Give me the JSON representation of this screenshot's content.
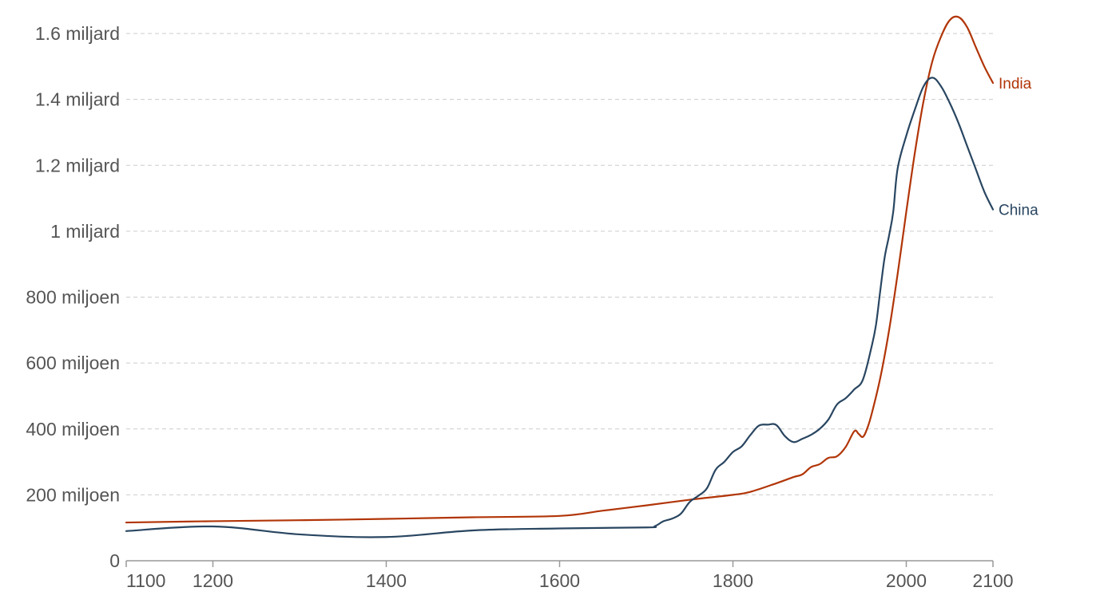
{
  "chart_data": {
    "type": "line",
    "title": "",
    "xlabel": "",
    "ylabel": "",
    "xlim": [
      1100,
      2100
    ],
    "ylim": [
      0,
      1600000000
    ],
    "grid": true,
    "legend": "inline-right",
    "x_ticks": [
      {
        "value": 1100,
        "label": "1100"
      },
      {
        "value": 1200,
        "label": "1200"
      },
      {
        "value": 1400,
        "label": "1400"
      },
      {
        "value": 1600,
        "label": "1600"
      },
      {
        "value": 1800,
        "label": "1800"
      },
      {
        "value": 2000,
        "label": "2000"
      },
      {
        "value": 2100,
        "label": "2100"
      }
    ],
    "y_ticks": [
      {
        "value": 0,
        "label": "0"
      },
      {
        "value": 200000000,
        "label": "200 miljoen"
      },
      {
        "value": 400000000,
        "label": "400 miljoen"
      },
      {
        "value": 600000000,
        "label": "600 miljoen"
      },
      {
        "value": 800000000,
        "label": "800 miljoen"
      },
      {
        "value": 1000000000,
        "label": "1 miljard"
      },
      {
        "value": 1200000000,
        "label": "1.2 miljard"
      },
      {
        "value": 1400000000,
        "label": "1.4 miljard"
      },
      {
        "value": 1600000000,
        "label": "1.6 miljard"
      }
    ],
    "series": [
      {
        "name": "India",
        "color": "#b13507",
        "points": [
          [
            1100,
            116000000
          ],
          [
            1200,
            120000000
          ],
          [
            1300,
            123000000
          ],
          [
            1400,
            127000000
          ],
          [
            1500,
            132000000
          ],
          [
            1600,
            136000000
          ],
          [
            1650,
            152000000
          ],
          [
            1700,
            168000000
          ],
          [
            1750,
            185000000
          ],
          [
            1800,
            200000000
          ],
          [
            1820,
            209000000
          ],
          [
            1850,
            235000000
          ],
          [
            1870,
            254000000
          ],
          [
            1880,
            262000000
          ],
          [
            1890,
            284000000
          ],
          [
            1900,
            293000000
          ],
          [
            1910,
            312000000
          ],
          [
            1920,
            317000000
          ],
          [
            1930,
            345000000
          ],
          [
            1940,
            393000000
          ],
          [
            1945,
            385000000
          ],
          [
            1950,
            376000000
          ],
          [
            1955,
            402000000
          ],
          [
            1960,
            445000000
          ],
          [
            1970,
            555000000
          ],
          [
            1980,
            697000000
          ],
          [
            1990,
            870000000
          ],
          [
            2000,
            1059000000
          ],
          [
            2010,
            1240000000
          ],
          [
            2020,
            1396000000
          ],
          [
            2030,
            1515000000
          ],
          [
            2040,
            1590000000
          ],
          [
            2050,
            1640000000
          ],
          [
            2060,
            1650000000
          ],
          [
            2070,
            1620000000
          ],
          [
            2080,
            1560000000
          ],
          [
            2090,
            1500000000
          ],
          [
            2100,
            1450000000
          ]
        ]
      },
      {
        "name": "China",
        "color": "#294661",
        "points": [
          [
            1100,
            90000000
          ],
          [
            1200,
            104000000
          ],
          [
            1300,
            80000000
          ],
          [
            1400,
            72000000
          ],
          [
            1500,
            92000000
          ],
          [
            1600,
            98000000
          ],
          [
            1700,
            101000000
          ],
          [
            1710,
            105000000
          ],
          [
            1720,
            120000000
          ],
          [
            1730,
            128000000
          ],
          [
            1740,
            143000000
          ],
          [
            1750,
            178000000
          ],
          [
            1760,
            197000000
          ],
          [
            1770,
            220000000
          ],
          [
            1780,
            276000000
          ],
          [
            1790,
            300000000
          ],
          [
            1800,
            330000000
          ],
          [
            1810,
            347000000
          ],
          [
            1820,
            381000000
          ],
          [
            1830,
            410000000
          ],
          [
            1840,
            413000000
          ],
          [
            1850,
            412000000
          ],
          [
            1860,
            378000000
          ],
          [
            1870,
            360000000
          ],
          [
            1880,
            370000000
          ],
          [
            1890,
            382000000
          ],
          [
            1900,
            400000000
          ],
          [
            1910,
            428000000
          ],
          [
            1920,
            474000000
          ],
          [
            1930,
            493000000
          ],
          [
            1940,
            520000000
          ],
          [
            1950,
            550000000
          ],
          [
            1960,
            650000000
          ],
          [
            1965,
            715000000
          ],
          [
            1970,
            820000000
          ],
          [
            1975,
            920000000
          ],
          [
            1980,
            985000000
          ],
          [
            1985,
            1060000000
          ],
          [
            1990,
            1190000000
          ],
          [
            2000,
            1290000000
          ],
          [
            2010,
            1370000000
          ],
          [
            2020,
            1440000000
          ],
          [
            2030,
            1466000000
          ],
          [
            2040,
            1440000000
          ],
          [
            2050,
            1390000000
          ],
          [
            2060,
            1330000000
          ],
          [
            2070,
            1260000000
          ],
          [
            2080,
            1190000000
          ],
          [
            2090,
            1120000000
          ],
          [
            2100,
            1066000000
          ]
        ]
      }
    ]
  }
}
